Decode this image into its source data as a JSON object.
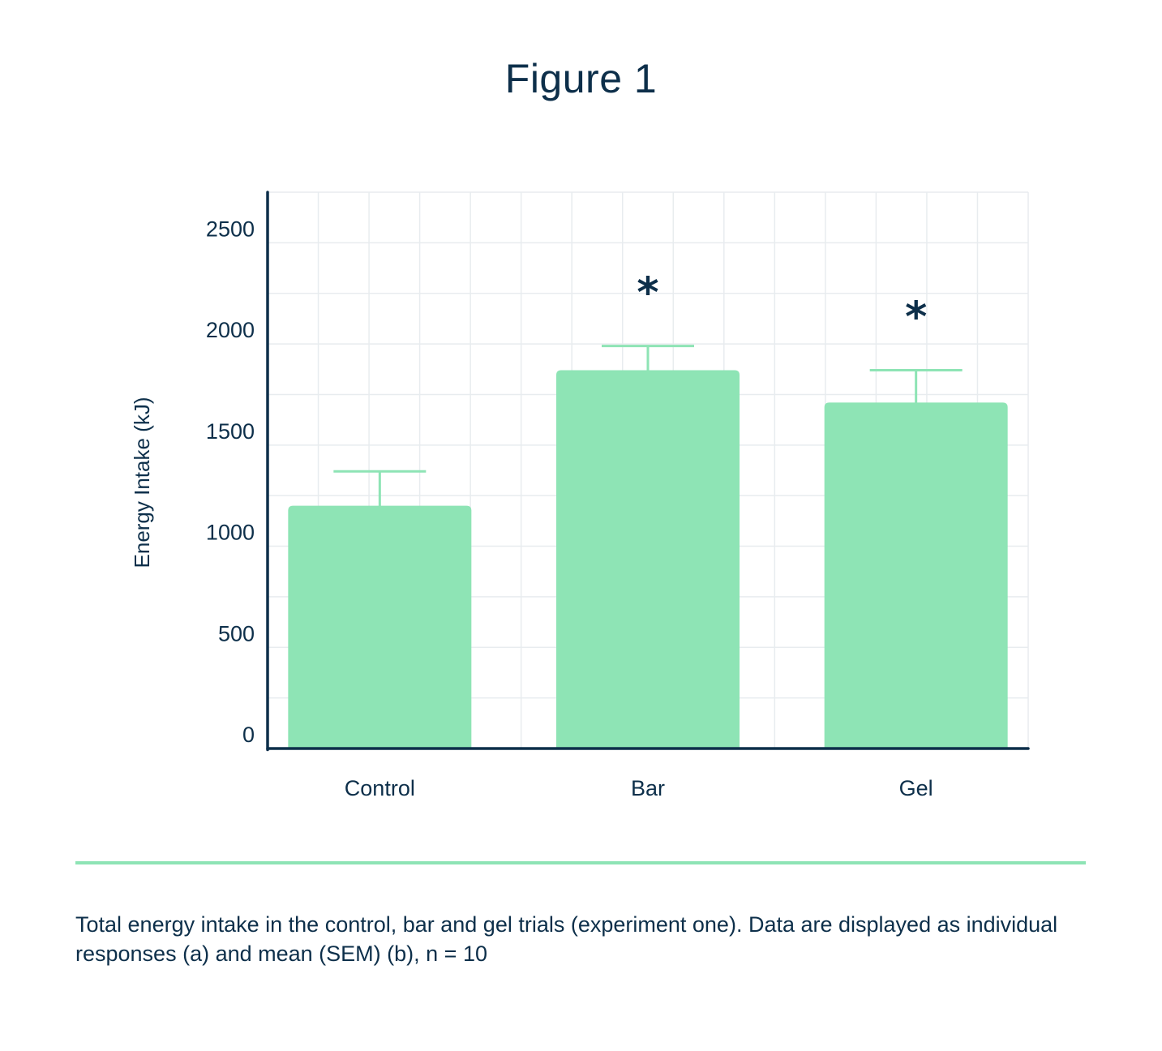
{
  "figure_title": "Figure 1",
  "caption": "Total energy intake in the control, bar and gel trials (experiment one). Data are displayed as individual responses (a) and mean (SEM) (b), n = 10",
  "colors": {
    "bar_fill": "#8ee4b5",
    "text": "#0d2f4a",
    "axis": "#0d2f4a",
    "grid": "#e8ecef",
    "divider": "#8ee4b5"
  },
  "chart_data": {
    "type": "bar",
    "title": "",
    "xlabel": "",
    "ylabel": "Energy Intake (kJ)",
    "categories": [
      "Control",
      "Bar",
      "Gel"
    ],
    "values": [
      1200,
      1870,
      1710
    ],
    "error_upper": [
      1370,
      1990,
      1870
    ],
    "significance": [
      "",
      "*",
      "*"
    ],
    "yticks": [
      "0",
      "500",
      "1000",
      "1500",
      "2000",
      "2500"
    ],
    "ytick_values": [
      0,
      500,
      1000,
      1500,
      2000,
      2500
    ],
    "ylim": [
      0,
      2750
    ],
    "grid": true
  }
}
